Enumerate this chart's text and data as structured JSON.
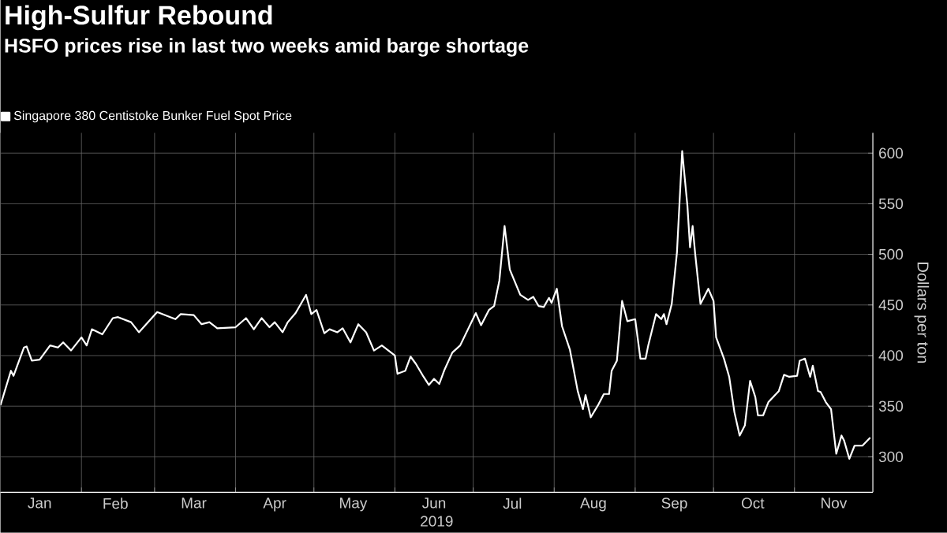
{
  "chart_data": {
    "type": "line",
    "title": "High-Sulfur Rebound",
    "subtitle": "HSFO prices rise in last two weeks amid barge shortage",
    "xlabel": "2019",
    "ylabel": "Dollars per ton",
    "x": [
      "2019-01-01",
      "2019-01-05",
      "2019-01-06",
      "2019-01-10",
      "2019-01-11",
      "2019-01-13",
      "2019-01-16",
      "2019-01-20",
      "2019-01-23",
      "2019-01-25",
      "2019-01-28",
      "2019-02-01",
      "2019-02-03",
      "2019-02-05",
      "2019-02-09",
      "2019-02-13",
      "2019-02-15",
      "2019-02-20",
      "2019-02-23",
      "2019-03-02",
      "2019-03-07",
      "2019-03-09",
      "2019-03-11",
      "2019-03-16",
      "2019-03-19",
      "2019-03-22",
      "2019-03-25",
      "2019-04-01",
      "2019-04-05",
      "2019-04-08",
      "2019-04-11",
      "2019-04-14",
      "2019-04-16",
      "2019-04-19",
      "2019-04-21",
      "2019-04-24",
      "2019-04-28",
      "2019-04-30",
      "2019-05-02",
      "2019-05-05",
      "2019-05-07",
      "2019-05-10",
      "2019-05-12",
      "2019-05-15",
      "2019-05-18",
      "2019-05-21",
      "2019-05-24",
      "2019-05-27",
      "2019-06-01",
      "2019-06-02",
      "2019-06-05",
      "2019-06-07",
      "2019-06-09",
      "2019-06-12",
      "2019-06-14",
      "2019-06-16",
      "2019-06-18",
      "2019-06-20",
      "2019-06-23",
      "2019-06-26",
      "2019-07-02",
      "2019-07-04",
      "2019-07-07",
      "2019-07-09",
      "2019-07-11",
      "2019-07-13",
      "2019-07-15",
      "2019-07-19",
      "2019-07-22",
      "2019-07-24",
      "2019-07-26",
      "2019-07-28",
      "2019-07-30",
      "2019-07-31",
      "2019-08-02",
      "2019-08-04",
      "2019-08-07",
      "2019-08-10",
      "2019-08-12",
      "2019-08-13",
      "2019-08-15",
      "2019-08-18",
      "2019-08-20",
      "2019-08-22",
      "2019-08-23",
      "2019-08-25",
      "2019-08-27",
      "2019-08-29",
      "2019-09-01",
      "2019-09-03",
      "2019-09-05",
      "2019-09-06",
      "2019-09-09",
      "2019-09-11",
      "2019-09-12",
      "2019-09-13",
      "2019-09-15",
      "2019-09-17",
      "2019-09-19",
      "2019-09-21",
      "2019-09-22",
      "2019-09-23",
      "2019-09-24",
      "2019-09-26",
      "2019-09-28",
      "2019-09-29",
      "2019-10-01",
      "2019-10-02",
      "2019-10-05",
      "2019-10-07",
      "2019-10-09",
      "2019-10-11",
      "2019-10-13",
      "2019-10-15",
      "2019-10-17",
      "2019-10-18",
      "2019-10-20",
      "2019-10-22",
      "2019-10-26",
      "2019-10-28",
      "2019-10-30",
      "2019-11-02",
      "2019-11-03",
      "2019-11-05",
      "2019-11-07",
      "2019-11-08",
      "2019-11-10",
      "2019-11-11",
      "2019-11-13",
      "2019-11-15",
      "2019-11-17",
      "2019-11-19",
      "2019-11-20",
      "2019-11-22",
      "2019-11-24",
      "2019-11-27",
      "2019-11-30"
    ],
    "series": [
      {
        "name": "Singapore 380 Centistoke Bunker Fuel Spot Price",
        "color": "#ffffff",
        "values": [
          351,
          385,
          380,
          408,
          409,
          395,
          396,
          410,
          408,
          413,
          405,
          418,
          410,
          426,
          421,
          437,
          438,
          433,
          423,
          443,
          438,
          436,
          441,
          440,
          431,
          433,
          427,
          428,
          437,
          426,
          437,
          428,
          433,
          423,
          433,
          442,
          460,
          441,
          445,
          422,
          426,
          423,
          427,
          413,
          431,
          423,
          405,
          410,
          400,
          382,
          385,
          399,
          392,
          379,
          371,
          377,
          372,
          386,
          403,
          410,
          442,
          430,
          445,
          449,
          474,
          528,
          485,
          460,
          455,
          458,
          449,
          448,
          457,
          452,
          466,
          429,
          406,
          365,
          347,
          361,
          339,
          352,
          362,
          362,
          385,
          395,
          454,
          434,
          436,
          397,
          397,
          410,
          441,
          436,
          441,
          431,
          451,
          502,
          602,
          548,
          507,
          528,
          500,
          451,
          461,
          466,
          454,
          418,
          397,
          379,
          344,
          321,
          331,
          375,
          359,
          341,
          341,
          354,
          365,
          381,
          379,
          380,
          395,
          397,
          379,
          390,
          365,
          364,
          354,
          347,
          303,
          321,
          316,
          298,
          311,
          311,
          319
        ]
      }
    ],
    "xlim": [
      "2019-01-01",
      "2019-12-01"
    ],
    "xticks": [
      {
        "value": "2019-02-01",
        "label": null
      },
      {
        "value": "2019-03-01",
        "label": null
      },
      {
        "value": "2019-04-01",
        "label": null
      },
      {
        "value": "2019-05-01",
        "label": null
      },
      {
        "value": "2019-06-01",
        "label": null
      },
      {
        "value": "2019-07-01",
        "label": null
      },
      {
        "value": "2019-08-01",
        "label": null
      },
      {
        "value": "2019-09-01",
        "label": null
      },
      {
        "value": "2019-10-01",
        "label": null
      },
      {
        "value": "2019-11-01",
        "label": null
      },
      {
        "value": "2019-01-16",
        "label": "Jan"
      },
      {
        "value": "2019-02-14",
        "label": "Feb"
      },
      {
        "value": "2019-03-16",
        "label": "Mar"
      },
      {
        "value": "2019-04-16",
        "label": "Apr"
      },
      {
        "value": "2019-05-16",
        "label": "May"
      },
      {
        "value": "2019-06-16",
        "label": "Jun"
      },
      {
        "value": "2019-07-16",
        "label": "Jul"
      },
      {
        "value": "2019-08-16",
        "label": "Aug"
      },
      {
        "value": "2019-09-16",
        "label": "Sep"
      },
      {
        "value": "2019-10-16",
        "label": "Oct"
      },
      {
        "value": "2019-11-16",
        "label": "Nov"
      }
    ],
    "ylim": [
      265,
      620
    ],
    "yticks": [
      300,
      350,
      400,
      450,
      500,
      550,
      600
    ],
    "grid": true,
    "legend": "top left",
    "marker": "none",
    "line_style": "solid"
  }
}
